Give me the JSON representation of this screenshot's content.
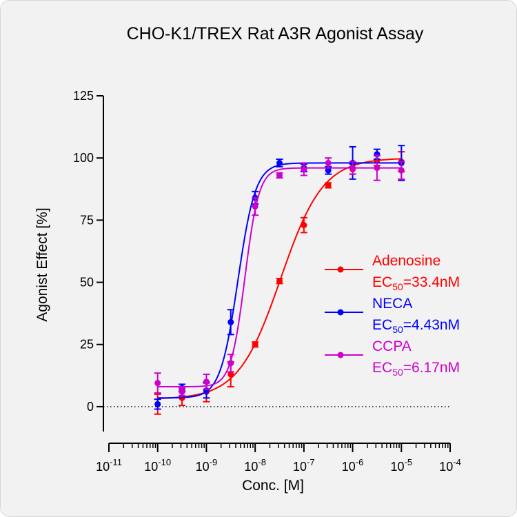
{
  "chart_data": {
    "type": "scatter",
    "title": "CHO-K1/TREX Rat A3R Agonist Assay",
    "xlabel": "Conc. [M]",
    "ylabel": "Agonist Effect [%]",
    "x_scale": "log",
    "xlim": [
      1e-11,
      0.0001
    ],
    "ylim": [
      -10,
      125
    ],
    "x_ticks": [
      {
        "exp": "-11"
      },
      {
        "exp": "-10"
      },
      {
        "exp": "-9"
      },
      {
        "exp": "-8"
      },
      {
        "exp": "-7"
      },
      {
        "exp": "-6"
      },
      {
        "exp": "-5"
      },
      {
        "exp": "-4"
      }
    ],
    "y_ticks": [
      "0",
      "25",
      "50",
      "75",
      "100",
      "125"
    ],
    "baseline": {
      "y": 0,
      "style": "dotted"
    },
    "grid": false,
    "legend_position": "right",
    "series": [
      {
        "name": "Adenosine",
        "ec50_label": "=33.4nM",
        "color": "#ff0000",
        "fit": {
          "bottom": 3,
          "top": 100,
          "ec50": 3.34e-08,
          "hill": 1.0
        },
        "points": [
          {
            "x": 1e-10,
            "y": 1,
            "err": 4
          },
          {
            "x": 3.16e-10,
            "y": 3.5,
            "err": 3
          },
          {
            "x": 1e-09,
            "y": 6,
            "err": 4
          },
          {
            "x": 3.16e-09,
            "y": 13,
            "err": 5
          },
          {
            "x": 1e-08,
            "y": 25,
            "err": 1
          },
          {
            "x": 3.16e-08,
            "y": 50.5,
            "err": 1
          },
          {
            "x": 1e-07,
            "y": 73,
            "err": 3
          },
          {
            "x": 3.16e-07,
            "y": 89,
            "err": 1
          },
          {
            "x": 1e-06,
            "y": 95.5,
            "err": 2
          },
          {
            "x": 3.16e-06,
            "y": 99,
            "err": 2
          },
          {
            "x": 1e-05,
            "y": 98.5,
            "err": 4
          }
        ]
      },
      {
        "name": "NECA",
        "ec50_label": "=4.43nM",
        "color": "#0000ff",
        "fit": {
          "bottom": 3.5,
          "top": 98,
          "ec50": 4.43e-09,
          "hill": 2.4
        },
        "points": [
          {
            "x": 1e-10,
            "y": 1,
            "err": 2
          },
          {
            "x": 3.16e-10,
            "y": 7.5,
            "err": 1.5
          },
          {
            "x": 1e-09,
            "y": 6.5,
            "err": 3
          },
          {
            "x": 3.16e-09,
            "y": 34,
            "err": 5
          },
          {
            "x": 1e-08,
            "y": 84,
            "err": 2.5
          },
          {
            "x": 3.16e-08,
            "y": 98,
            "err": 1.5
          },
          {
            "x": 1e-07,
            "y": 96,
            "err": 1.5
          },
          {
            "x": 3.16e-07,
            "y": 95,
            "err": 1.5
          },
          {
            "x": 1e-06,
            "y": 98,
            "err": 6.5
          },
          {
            "x": 3.16e-06,
            "y": 101.5,
            "err": 2
          },
          {
            "x": 1e-05,
            "y": 98,
            "err": 7
          }
        ]
      },
      {
        "name": "CCPA",
        "ec50_label": "=6.17nM",
        "color": "#cc00cc",
        "fit": {
          "bottom": 8,
          "top": 96,
          "ec50": 6.17e-09,
          "hill": 3.0
        },
        "points": [
          {
            "x": 1e-10,
            "y": 9.5,
            "err": 4
          },
          {
            "x": 3.16e-10,
            "y": 6,
            "err": 1.5
          },
          {
            "x": 1e-09,
            "y": 10,
            "err": 3
          },
          {
            "x": 3.16e-09,
            "y": 17.5,
            "err": 3.5
          },
          {
            "x": 1e-08,
            "y": 80.5,
            "err": 3.5
          },
          {
            "x": 3.16e-08,
            "y": 93,
            "err": 1
          },
          {
            "x": 1e-07,
            "y": 95.5,
            "err": 2.5
          },
          {
            "x": 3.16e-07,
            "y": 98,
            "err": 2
          },
          {
            "x": 1e-06,
            "y": 96,
            "err": 2.5
          },
          {
            "x": 3.16e-06,
            "y": 96,
            "err": 5
          },
          {
            "x": 1e-05,
            "y": 95,
            "err": 3.5
          }
        ]
      }
    ]
  }
}
